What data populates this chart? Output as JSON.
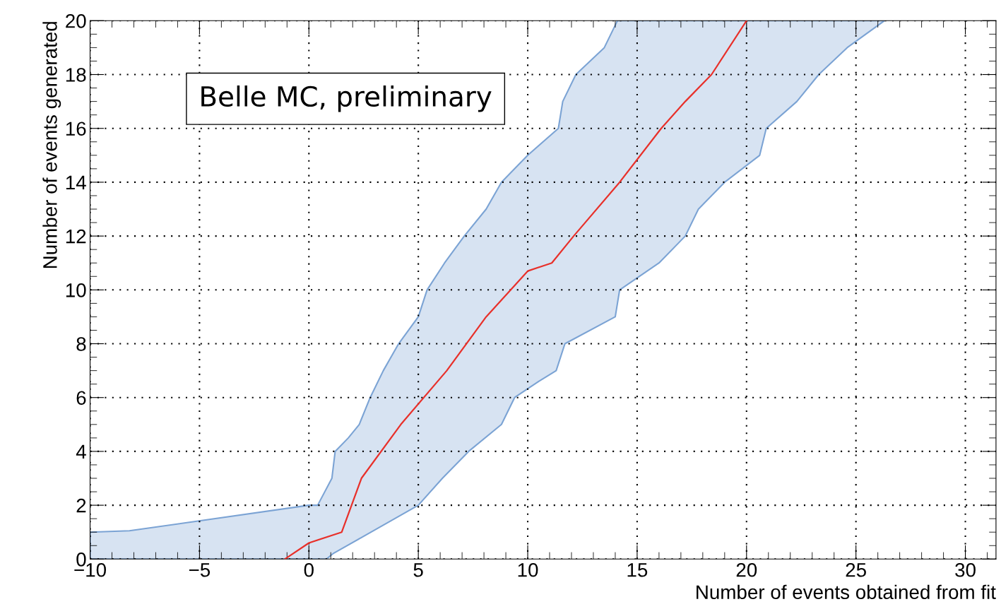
{
  "chart_data": {
    "type": "line",
    "xlabel": "Number of events obtained from fit",
    "ylabel": "Number of events generated",
    "xlim": [
      -10,
      31.4
    ],
    "xticks": [
      {
        "value": -10,
        "label": "−10"
      },
      {
        "value": -5,
        "label": "−5"
      },
      0,
      5,
      10,
      15,
      20,
      25,
      30
    ],
    "ylim": [
      0,
      20
    ],
    "yticks": [
      0,
      2,
      4,
      6,
      8,
      10,
      12,
      14,
      16,
      18,
      20
    ],
    "grid": true,
    "annotations": [
      "Belle MC, preliminary"
    ],
    "series": [
      {
        "type": "area",
        "color": "#7ba3d4",
        "x": [
          -10,
          -10,
          -8.2,
          0.0,
          0.4,
          1.05,
          1.2,
          1.8,
          2.3,
          2.8,
          3.4,
          4.1,
          5.0,
          5.4,
          6.2,
          7.1,
          8.1,
          8.8,
          10.0,
          11.4,
          11.6,
          12.2,
          13.5,
          14.1,
          26.3,
          24.6,
          23.3,
          22.3,
          20.9,
          20.6,
          19.0,
          17.8,
          17.2,
          16.0,
          14.2,
          14.0,
          11.7,
          11.3,
          10.5,
          9.4,
          8.8,
          7.3,
          6.1,
          5.0,
          1.1,
          0.8
        ],
        "values": [
          0,
          1.0,
          1.05,
          2.0,
          2.0,
          3,
          4,
          4.5,
          5,
          6,
          7,
          8,
          9,
          10,
          11,
          12,
          13,
          14,
          15,
          16,
          17,
          18,
          19,
          20,
          20,
          19,
          18,
          17,
          16,
          15,
          14,
          13,
          12,
          11,
          10,
          9,
          8,
          7,
          6.6,
          6,
          5,
          4,
          3,
          2,
          0.2,
          0
        ]
      },
      {
        "color": "#e8302a",
        "x": [
          -1.1,
          0.0,
          1.5,
          2.4,
          4.2,
          6.3,
          8.1,
          10.0,
          11.1,
          12.1,
          14.2,
          16.1,
          17.2,
          18.4,
          20.0
        ],
        "values": [
          0,
          0.6,
          1,
          3,
          5,
          7,
          9,
          10.7,
          11,
          12,
          14,
          16,
          17,
          18,
          20
        ]
      }
    ]
  }
}
